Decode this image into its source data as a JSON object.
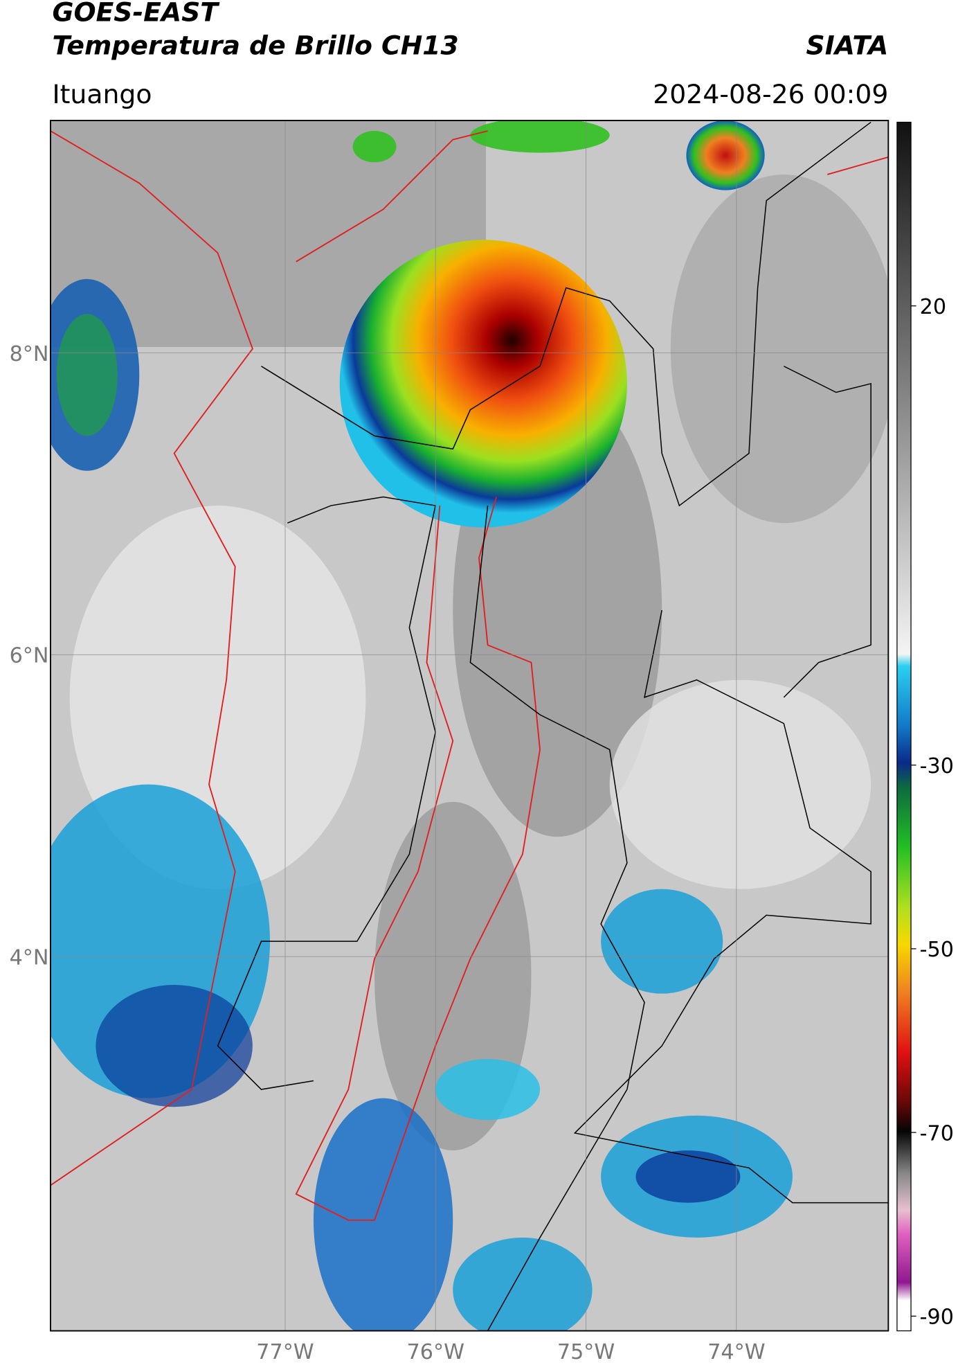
{
  "header": {
    "title": "GOES-EAST",
    "subtitle": "Temperatura de Brillo CH13",
    "brand": "SIATA",
    "location": "Ituango",
    "datetime": "2024-08-26 00:09"
  },
  "map": {
    "xlim": [
      -78.56,
      -72.99
    ],
    "ylim": [
      1.52,
      9.54
    ],
    "xticks": [
      {
        "value": -77,
        "label": "77°W"
      },
      {
        "value": -76,
        "label": "76°W"
      },
      {
        "value": -75,
        "label": "75°W"
      },
      {
        "value": -74,
        "label": "74°W"
      }
    ],
    "yticks": [
      {
        "value": 8,
        "label": "8°N"
      },
      {
        "value": 6,
        "label": "6°N"
      },
      {
        "value": 4,
        "label": "4°N"
      }
    ],
    "grid": true
  },
  "colorbar": {
    "lim": [
      -91.6,
      40
    ],
    "ticks": [
      20,
      -30,
      -50,
      -70,
      -90
    ]
  }
}
